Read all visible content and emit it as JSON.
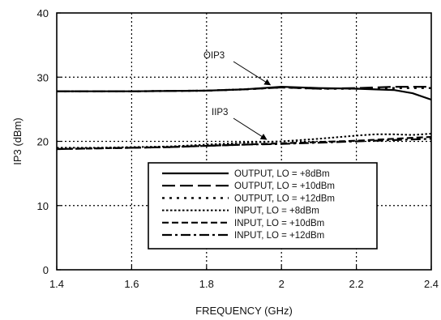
{
  "chart_data": {
    "type": "line",
    "title": "",
    "xlabel": "FREQUENCY (GHz)",
    "ylabel": "IP3 (dBm)",
    "xlim": [
      1.4,
      2.4
    ],
    "ylim": [
      0,
      40
    ],
    "xticks": [
      "1.4",
      "1.6",
      "1.8",
      "2",
      "2.2",
      "2.4"
    ],
    "yticks": [
      "0",
      "10",
      "20",
      "30",
      "40"
    ],
    "grid": "dotted",
    "legend_position": "lower-right",
    "series": [
      {
        "name": "OUTPUT, LO = +8dBm",
        "style": "solid",
        "x": [
          1.4,
          1.6,
          1.8,
          1.9,
          2.0,
          2.1,
          2.2,
          2.3,
          2.35,
          2.4
        ],
        "y": [
          27.8,
          27.8,
          27.9,
          28.1,
          28.5,
          28.3,
          28.2,
          28.0,
          27.5,
          26.5
        ]
      },
      {
        "name": "OUTPUT, LO = +10dBm",
        "style": "longdash",
        "x": [
          1.4,
          1.6,
          1.8,
          1.9,
          2.0,
          2.1,
          2.2,
          2.3,
          2.4
        ],
        "y": [
          27.8,
          27.8,
          27.9,
          28.1,
          28.4,
          28.2,
          28.3,
          28.5,
          28.5
        ]
      },
      {
        "name": "OUTPUT, LO = +12dBm",
        "style": "dot",
        "x": [
          1.4,
          1.6,
          1.8,
          1.9,
          2.0,
          2.1,
          2.2,
          2.3,
          2.4
        ],
        "y": [
          27.8,
          27.8,
          27.9,
          28.1,
          28.4,
          28.2,
          28.2,
          28.3,
          28.3
        ]
      },
      {
        "name": "INPUT, LO = +8dBm",
        "style": "shortdot",
        "x": [
          1.4,
          1.5,
          1.6,
          1.7,
          1.8,
          1.9,
          2.0,
          2.1,
          2.2,
          2.25,
          2.3,
          2.35,
          2.4
        ],
        "y": [
          19.0,
          19.0,
          19.1,
          19.2,
          19.5,
          19.8,
          20.0,
          20.4,
          20.9,
          21.1,
          21.1,
          21.0,
          21.2
        ]
      },
      {
        "name": "INPUT, LO = +10dBm",
        "style": "dash",
        "x": [
          1.4,
          1.5,
          1.6,
          1.7,
          1.8,
          1.9,
          2.0,
          2.1,
          2.2,
          2.3,
          2.4
        ],
        "y": [
          18.8,
          18.9,
          19.0,
          19.1,
          19.3,
          19.5,
          19.7,
          19.9,
          20.1,
          20.4,
          20.7
        ]
      },
      {
        "name": "INPUT, LO = +12dBm",
        "style": "dashdot",
        "x": [
          1.4,
          1.5,
          1.6,
          1.7,
          1.8,
          1.9,
          2.0,
          2.1,
          2.2,
          2.3,
          2.4
        ],
        "y": [
          18.8,
          18.9,
          19.0,
          19.1,
          19.3,
          19.5,
          19.6,
          19.8,
          20.0,
          20.2,
          20.4
        ]
      }
    ],
    "annotations": [
      {
        "text": "OIP3",
        "target_x": 1.97,
        "target_y": 28.3
      },
      {
        "text": "IIP3",
        "target_x": 1.96,
        "target_y": 19.8
      }
    ]
  }
}
